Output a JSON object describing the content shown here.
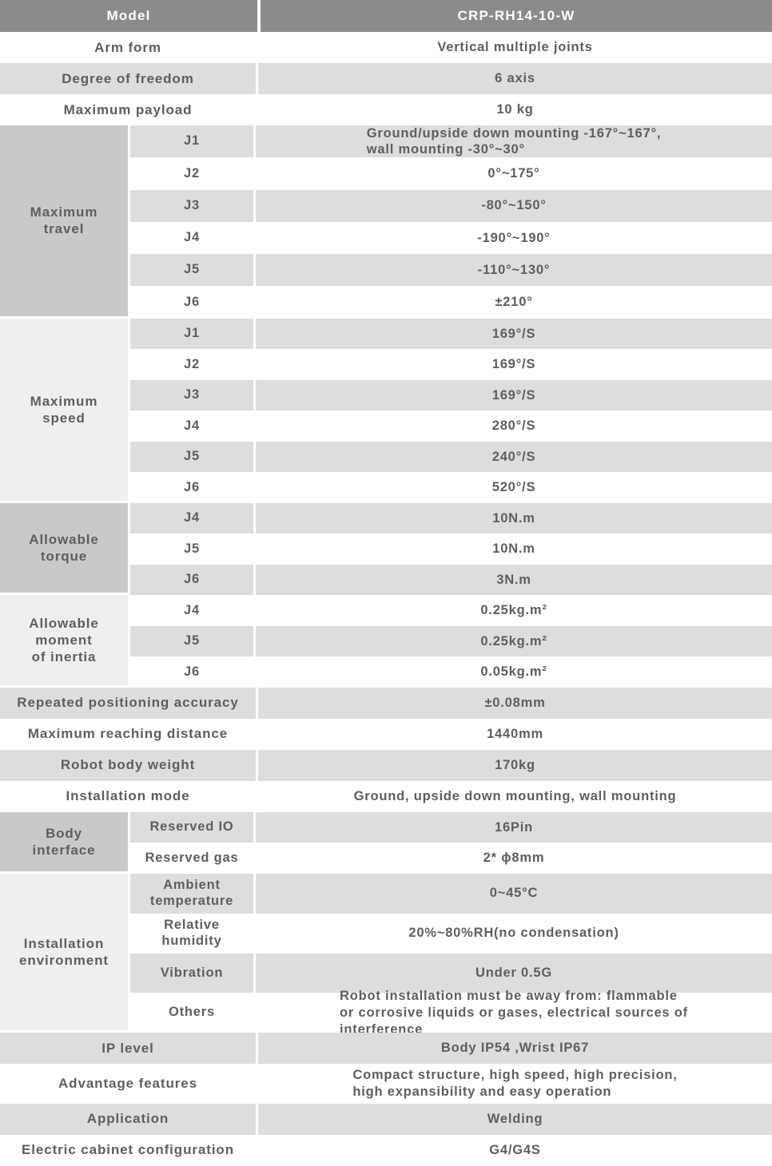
{
  "colors": {
    "header_bg": "#8b8b8b",
    "header_text": "#ffffff",
    "row_shade": "#dbdedd",
    "section_dark": "#c8cac9",
    "section_light": "#efefef",
    "text": "#5d5f5e"
  },
  "header": {
    "label": "Model",
    "value": "CRP-RH14-10-W"
  },
  "sections": [
    {
      "type": "row",
      "label": "Arm form",
      "value": "Vertical multiple joints",
      "shaded": false
    },
    {
      "type": "row",
      "label": "Degree of freedom",
      "value": "6 axis",
      "shaded": true
    },
    {
      "type": "row",
      "label": "Maximum payload",
      "value": "10 kg",
      "shaded": false
    },
    {
      "type": "group",
      "label": "Maximum\ntravel",
      "tone": "dark",
      "rows": [
        {
          "label": "J1",
          "value": "Ground/upside down mounting -167°~167°,\nwall mounting -30°~30°",
          "shaded": true,
          "align": "left"
        },
        {
          "label": "J2",
          "value": "0°~175°",
          "shaded": false
        },
        {
          "label": "J3",
          "value": "-80°~150°",
          "shaded": true
        },
        {
          "label": "J4",
          "value": "-190°~190°",
          "shaded": false
        },
        {
          "label": "J5",
          "value": "-110°~130°",
          "shaded": true
        },
        {
          "label": "J6",
          "value": "±210°",
          "shaded": false
        }
      ]
    },
    {
      "type": "group",
      "label": "Maximum\nspeed",
      "tone": "light",
      "rows": [
        {
          "label": "J1",
          "value": "169°/S",
          "shaded": true
        },
        {
          "label": "J2",
          "value": "169°/S",
          "shaded": false
        },
        {
          "label": "J3",
          "value": "169°/S",
          "shaded": true
        },
        {
          "label": "J4",
          "value": "280°/S",
          "shaded": false
        },
        {
          "label": "J5",
          "value": "240°/S",
          "shaded": true
        },
        {
          "label": "J6",
          "value": "520°/S",
          "shaded": false
        }
      ]
    },
    {
      "type": "group",
      "label": "Allowable\ntorque",
      "tone": "dark",
      "rows": [
        {
          "label": "J4",
          "value": "10N.m",
          "shaded": true
        },
        {
          "label": "J5",
          "value": "10N.m",
          "shaded": false
        },
        {
          "label": "J6",
          "value": "3N.m",
          "shaded": true
        }
      ]
    },
    {
      "type": "group",
      "label": "Allowable\nmoment\nof inertia",
      "tone": "light",
      "rows": [
        {
          "label": "J4",
          "value": "0.25kg.m²",
          "shaded": false
        },
        {
          "label": "J5",
          "value": "0.25kg.m²",
          "shaded": true
        },
        {
          "label": "J6",
          "value": "0.05kg.m²",
          "shaded": false
        }
      ]
    },
    {
      "type": "row",
      "label": "Repeated positioning accuracy",
      "value": "±0.08mm",
      "shaded": true
    },
    {
      "type": "row",
      "label": "Maximum reaching distance",
      "value": "1440mm",
      "shaded": false
    },
    {
      "type": "row",
      "label": "Robot body weight",
      "value": "170kg",
      "shaded": true
    },
    {
      "type": "row",
      "label": "Installation mode",
      "value": "Ground, upside down mounting, wall mounting",
      "shaded": false
    },
    {
      "type": "group",
      "label": "Body\ninterface",
      "tone": "dark",
      "rows": [
        {
          "label": "Reserved IO",
          "value": "16Pin",
          "shaded": true
        },
        {
          "label": "Reserved gas",
          "value": "2* ϕ8mm",
          "shaded": false
        }
      ]
    },
    {
      "type": "group",
      "label": "Installation\nenvironment",
      "tone": "light",
      "rows": [
        {
          "label": "Ambient\ntemperature",
          "value": "0~45°C",
          "shaded": true
        },
        {
          "label": "Relative\nhumidity",
          "value": "20%~80%RH(no condensation)",
          "shaded": false
        },
        {
          "label": "Vibration",
          "value": "Under 0.5G",
          "shaded": true
        },
        {
          "label": "Others",
          "value": "Robot installation must be away from: flammable\nor corrosive liquids or gases, electrical sources of\ninterference",
          "shaded": false,
          "align": "left"
        }
      ]
    },
    {
      "type": "row",
      "label": "IP level",
      "value": "Body IP54 ,Wrist IP67",
      "shaded": true
    },
    {
      "type": "row",
      "label": "Advantage features",
      "value": "Compact structure, high speed, high precision,\nhigh expansibility and easy operation",
      "shaded": false,
      "align": "left"
    },
    {
      "type": "row",
      "label": "Application",
      "value": "Welding",
      "shaded": true
    },
    {
      "type": "row",
      "label": "Electric cabinet configuration",
      "value": "G4/G4S",
      "shaded": false
    }
  ]
}
